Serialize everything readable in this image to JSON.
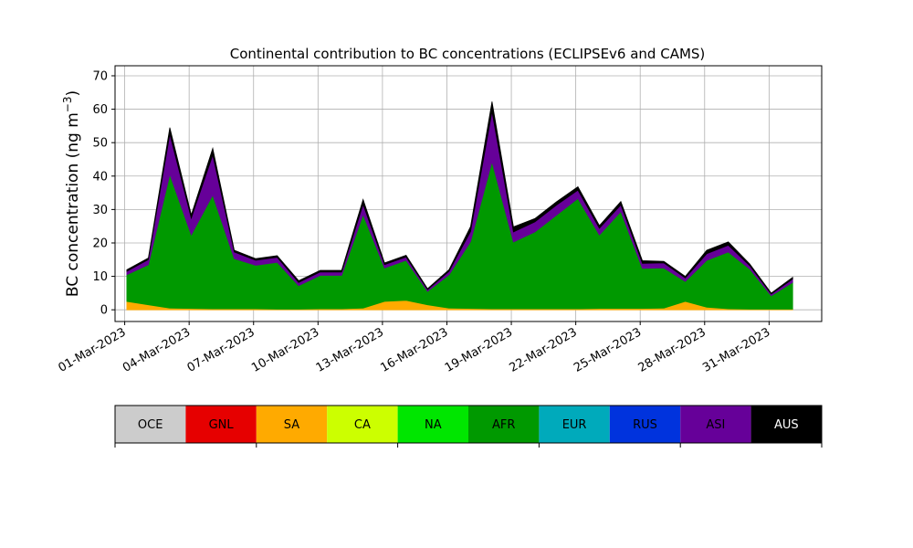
{
  "chart_data": {
    "type": "area",
    "stacked": true,
    "title": "Continental contribution to BC concentrations (ECLIPSEv6 and CAMS)",
    "ylabel": "BC concentration (ng m",
    "ylabel_sup": "−3",
    "ylabel_close": ")",
    "xlabel": "",
    "ylim": [
      -3.5,
      73
    ],
    "yticks": [
      0,
      10,
      20,
      30,
      40,
      50,
      60,
      70
    ],
    "xlim_days": [
      -0.45,
      32.45
    ],
    "xtick_labels": [
      "01-Mar-2023",
      "04-Mar-2023",
      "07-Mar-2023",
      "10-Mar-2023",
      "13-Mar-2023",
      "16-Mar-2023",
      "19-Mar-2023",
      "22-Mar-2023",
      "25-Mar-2023",
      "28-Mar-2023",
      "31-Mar-2023"
    ],
    "grid": true,
    "time": [
      "2023-03-01",
      "2023-03-02",
      "2023-03-03",
      "2023-03-04",
      "2023-03-05",
      "2023-03-06",
      "2023-03-07",
      "2023-03-08",
      "2023-03-09",
      "2023-03-10",
      "2023-03-11",
      "2023-03-12",
      "2023-03-13",
      "2023-03-14",
      "2023-03-15",
      "2023-03-16",
      "2023-03-17",
      "2023-03-18",
      "2023-03-19",
      "2023-03-20",
      "2023-03-21",
      "2023-03-22",
      "2023-03-23",
      "2023-03-24",
      "2023-03-25",
      "2023-03-26",
      "2023-03-27",
      "2023-03-28",
      "2023-03-29",
      "2023-03-30",
      "2023-03-31",
      "2023-04-01"
    ],
    "series": [
      {
        "name": "SA",
        "values": [
          2.5,
          1.5,
          0.5,
          0.4,
          0.3,
          0.3,
          0.3,
          0.2,
          0.2,
          0.3,
          0.3,
          0.5,
          2.5,
          2.8,
          1.5,
          0.5,
          0.4,
          0.3,
          0.3,
          0.3,
          0.3,
          0.3,
          0.4,
          0.4,
          0.4,
          0.5,
          2.5,
          0.8,
          0.3,
          0.2,
          0.2,
          0.2
        ]
      },
      {
        "name": "AFR",
        "values": [
          8,
          12,
          40,
          22,
          34,
          15,
          13,
          14,
          7,
          10,
          10,
          28,
          10,
          12,
          4,
          10,
          20,
          44,
          20,
          23,
          28,
          33,
          22,
          29,
          12,
          12,
          6,
          14,
          17,
          12,
          4,
          8
        ]
      },
      {
        "name": "ASI",
        "values": [
          1,
          1.5,
          12,
          5,
          12,
          2,
          1.5,
          1.5,
          1,
          1,
          1,
          3,
          1,
          1,
          0.5,
          1,
          3,
          15,
          3,
          3,
          3,
          2.5,
          2,
          2,
          1.5,
          1.5,
          1,
          2,
          2,
          1,
          0.5,
          1
        ]
      },
      {
        "name": "AUS",
        "values": [
          0.5,
          0.5,
          2,
          1,
          2,
          0.5,
          0.5,
          0.5,
          0.5,
          0.5,
          0.5,
          1.5,
          0.5,
          0.5,
          0.3,
          0.5,
          1.5,
          3,
          1.5,
          1,
          1,
          1,
          0.8,
          1,
          0.8,
          0.5,
          0.5,
          1,
          1,
          0.5,
          0.3,
          0.5
        ]
      }
    ]
  },
  "colorbar": {
    "categories": [
      {
        "name": "OCE",
        "color": "#cccccc"
      },
      {
        "name": "GNL",
        "color": "#e60000"
      },
      {
        "name": "SA",
        "color": "#ffaa00"
      },
      {
        "name": "CA",
        "color": "#ccff00"
      },
      {
        "name": "NA",
        "color": "#00e600"
      },
      {
        "name": "AFR",
        "color": "#009900"
      },
      {
        "name": "EUR",
        "color": "#00aabb"
      },
      {
        "name": "RUS",
        "color": "#0033dd"
      },
      {
        "name": "ASI",
        "color": "#660099"
      },
      {
        "name": "AUS",
        "color": "#000000"
      }
    ]
  }
}
